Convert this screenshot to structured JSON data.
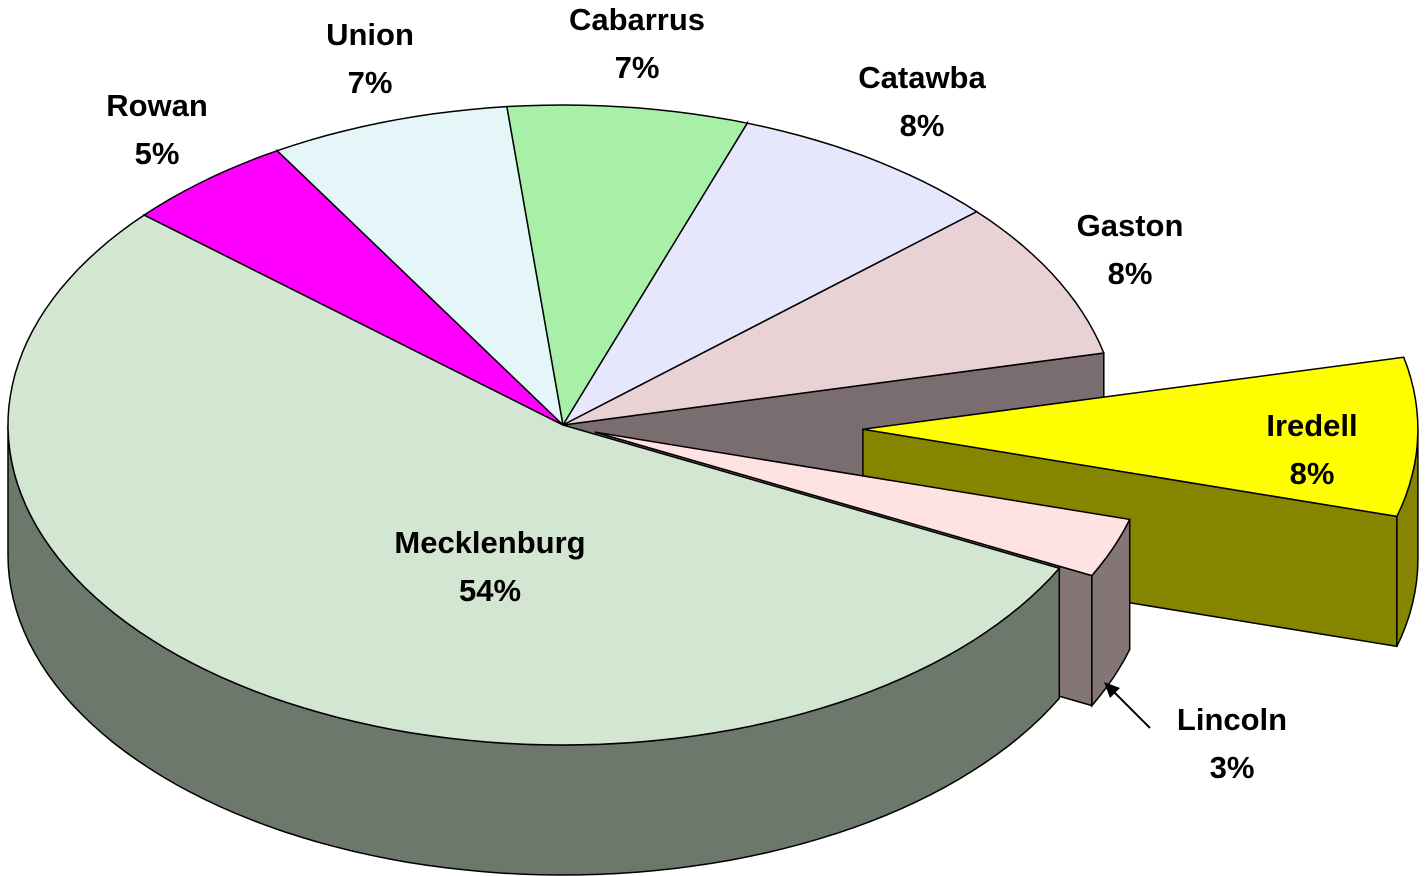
{
  "chart_data": {
    "type": "pie3d",
    "categories": [
      "Rowan",
      "Union",
      "Cabarrus",
      "Catawba",
      "Gaston",
      "Iredell",
      "Lincoln",
      "Mecklenburg"
    ],
    "values": [
      5,
      7,
      7,
      8,
      8,
      8,
      3,
      54
    ],
    "value_labels": [
      "5%",
      "7%",
      "7%",
      "8%",
      "8%",
      "8%",
      "3%",
      "54%"
    ],
    "colors": [
      "#ff00ff",
      "#e4f6f8",
      "#a8f0a8",
      "#e6e6fc",
      "#e8d2d6",
      "#ffff00",
      "#ffe2e2",
      "#d2e6d2"
    ]
  }
}
